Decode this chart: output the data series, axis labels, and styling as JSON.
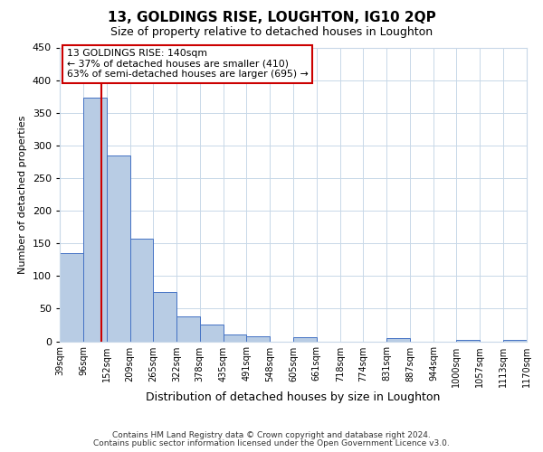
{
  "title": "13, GOLDINGS RISE, LOUGHTON, IG10 2QP",
  "subtitle": "Size of property relative to detached houses in Loughton",
  "xlabel": "Distribution of detached houses by size in Loughton",
  "ylabel": "Number of detached properties",
  "bin_edges": [
    39,
    96,
    152,
    209,
    265,
    322,
    378,
    435,
    491,
    548,
    605,
    661,
    718,
    774,
    831,
    887,
    944,
    1000,
    1057,
    1113,
    1170
  ],
  "bar_heights": [
    135,
    373,
    285,
    157,
    75,
    38,
    25,
    10,
    7,
    0,
    6,
    0,
    0,
    0,
    5,
    0,
    0,
    2,
    0,
    2
  ],
  "bar_color": "#b8cce4",
  "bar_edge_color": "#4472c4",
  "property_line_x": 140,
  "property_line_color": "#cc0000",
  "annotation_text": "13 GOLDINGS RISE: 140sqm\n← 37% of detached houses are smaller (410)\n63% of semi-detached houses are larger (695) →",
  "annotation_box_color": "#cc0000",
  "ylim": [
    0,
    450
  ],
  "yticks": [
    0,
    50,
    100,
    150,
    200,
    250,
    300,
    350,
    400,
    450
  ],
  "tick_labels": [
    "39sqm",
    "96sqm",
    "152sqm",
    "209sqm",
    "265sqm",
    "322sqm",
    "378sqm",
    "435sqm",
    "491sqm",
    "548sqm",
    "605sqm",
    "661sqm",
    "718sqm",
    "774sqm",
    "831sqm",
    "887sqm",
    "944sqm",
    "1000sqm",
    "1057sqm",
    "1113sqm",
    "1170sqm"
  ],
  "footer_line1": "Contains HM Land Registry data © Crown copyright and database right 2024.",
  "footer_line2": "Contains public sector information licensed under the Open Government Licence v3.0.",
  "background_color": "#ffffff",
  "grid_color": "#c8d8e8",
  "title_fontsize": 11,
  "subtitle_fontsize": 9,
  "xlabel_fontsize": 9,
  "ylabel_fontsize": 8,
  "xtick_fontsize": 7,
  "ytick_fontsize": 8,
  "footer_fontsize": 6.5
}
